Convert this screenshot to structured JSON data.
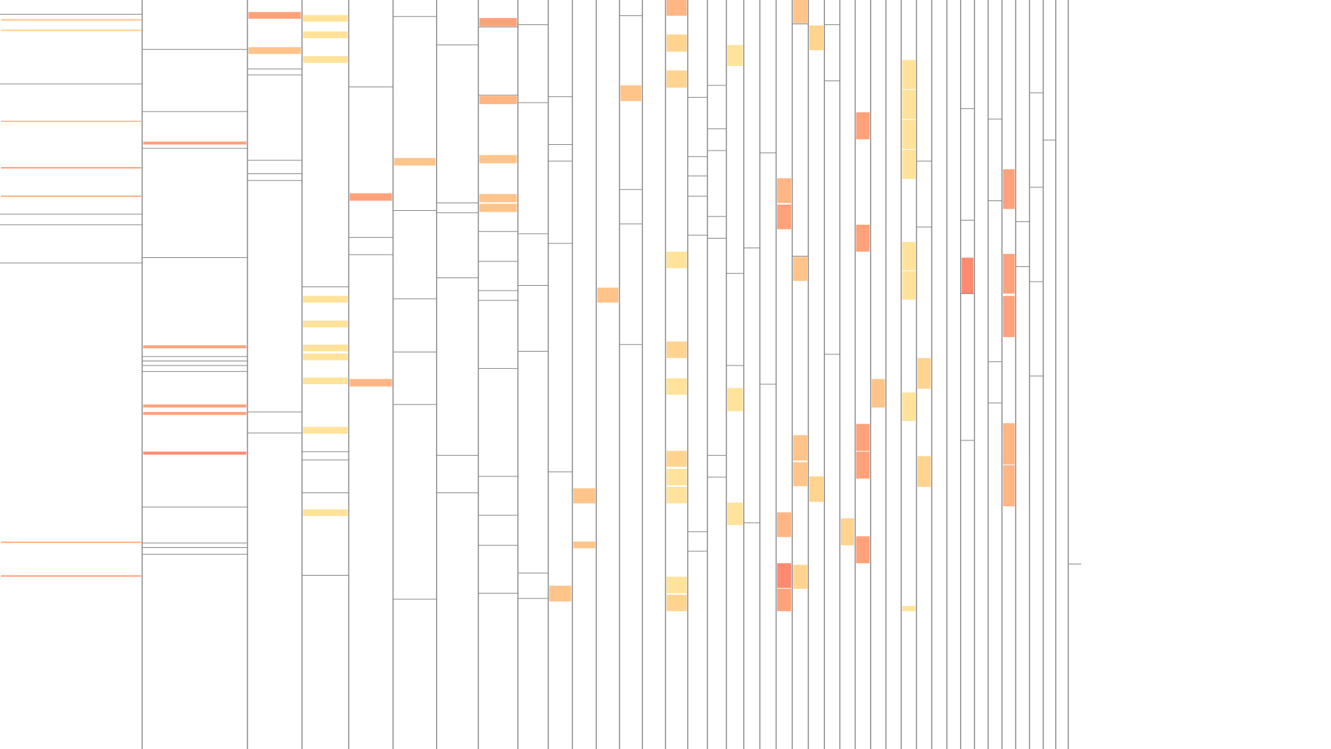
{
  "page": {
    "background": "#ffffff"
  },
  "chart_data": {
    "type": "heatmap",
    "description_axis": "",
    "x_range": [
      0,
      100
    ],
    "y_range": [
      0,
      100
    ],
    "visible_range": {
      "x": [
        0,
        81.25
      ],
      "y": [
        0,
        81.6
      ]
    },
    "palette": [
      "#FFE39A",
      "#FFD48F",
      "#FFC48A",
      "#FFB584",
      "#FFA27A",
      "#FF8A70"
    ],
    "divider_color": "#808080",
    "columns": [
      {
        "x0": 0.0,
        "x1": 10.68,
        "dividers": [
          1.9,
          11.2,
          28.6,
          30.0,
          35.1
        ],
        "cells": [
          [
            2.55,
            2.75,
            2
          ],
          [
            3.95,
            4.15,
            1
          ],
          [
            16.1,
            16.3,
            2
          ],
          [
            22.3,
            22.5,
            4
          ],
          [
            26.1,
            26.3,
            3
          ],
          [
            72.3,
            72.5,
            3
          ],
          [
            76.8,
            77.0,
            4
          ]
        ]
      },
      {
        "x0": 10.68,
        "x1": 18.59,
        "dividers": [
          6.6,
          14.9,
          19.8,
          34.4,
          47.6,
          48.2,
          48.8,
          49.6,
          67.7,
          72.5,
          73.1,
          74.0
        ],
        "cells": [
          [
            18.9,
            19.3,
            4
          ],
          [
            46.1,
            46.5,
            4
          ],
          [
            54.0,
            54.4,
            4
          ],
          [
            55.0,
            55.4,
            4
          ],
          [
            60.3,
            60.7,
            5
          ]
        ]
      },
      {
        "x0": 18.59,
        "x1": 22.69,
        "dividers": [
          9.2,
          10.0,
          21.4,
          23.2,
          24.1,
          55.0,
          57.8
        ],
        "cells": [
          [
            1.6,
            2.5,
            4
          ],
          [
            6.3,
            7.2,
            2
          ]
        ]
      },
      {
        "x0": 22.69,
        "x1": 26.2,
        "dividers": [
          38.3,
          60.3,
          61.4,
          65.8,
          76.8
        ],
        "cells": [
          [
            2.0,
            2.9,
            0
          ],
          [
            4.2,
            5.1,
            0
          ],
          [
            7.5,
            8.4,
            0
          ],
          [
            39.5,
            40.4,
            0
          ],
          [
            42.8,
            43.7,
            0
          ],
          [
            46.0,
            46.9,
            0
          ],
          [
            47.2,
            48.1,
            0
          ],
          [
            50.4,
            51.3,
            0
          ],
          [
            57.0,
            57.9,
            0
          ],
          [
            68.0,
            68.9,
            0
          ]
        ]
      },
      {
        "x0": 26.2,
        "x1": 29.53,
        "dividers": [
          11.6,
          31.7,
          34.0
        ],
        "cells": [
          [
            25.8,
            26.8,
            4
          ],
          [
            50.6,
            51.6,
            3
          ]
        ]
      },
      {
        "x0": 29.53,
        "x1": 32.8,
        "dividers": [
          2.2,
          28.1,
          39.9,
          47.0,
          54.0,
          80.0
        ],
        "cells": [
          [
            21.1,
            22.1,
            2
          ]
        ]
      },
      {
        "x0": 32.8,
        "x1": 35.94,
        "dividers": [
          6.0,
          27.1,
          28.4,
          37.1,
          60.8,
          65.8
        ],
        "cells": []
      },
      {
        "x0": 35.94,
        "x1": 38.91,
        "dividers": [
          3.6,
          12.7,
          30.9,
          34.9,
          38.8,
          40.1,
          49.2,
          63.6,
          68.8,
          72.8,
          79.2
        ],
        "cells": [
          [
            2.4,
            3.5,
            4
          ],
          [
            12.8,
            13.9,
            3
          ],
          [
            20.7,
            21.8,
            2
          ],
          [
            25.9,
            27.0,
            2
          ],
          [
            27.2,
            28.3,
            2
          ]
        ]
      },
      {
        "x0": 38.91,
        "x1": 41.19,
        "dividers": [
          3.3,
          13.7,
          31.2,
          38.1,
          46.9,
          76.5,
          79.9
        ],
        "cells": []
      },
      {
        "x0": 41.19,
        "x1": 43.0,
        "dividers": [
          12.9,
          19.3,
          21.5,
          32.5,
          63.0
        ],
        "cells": [
          [
            78.2,
            80.3,
            2
          ]
        ]
      },
      {
        "x0": 43.0,
        "x1": 44.8,
        "dividers": [],
        "cells": [
          [
            65.2,
            67.2,
            2
          ],
          [
            72.3,
            73.2,
            2
          ]
        ]
      },
      {
        "x0": 44.8,
        "x1": 46.54,
        "dividers": [],
        "cells": [
          [
            38.4,
            40.4,
            2
          ]
        ]
      },
      {
        "x0": 46.54,
        "x1": 48.26,
        "dividers": [
          2.1,
          25.3,
          29.9,
          46.0
        ],
        "cells": [
          [
            11.4,
            13.5,
            2
          ]
        ]
      },
      {
        "x0": 48.26,
        "x1": 50.0,
        "dividers": [],
        "cells": []
      },
      {
        "x0": 50.0,
        "x1": 51.67,
        "dividers": [],
        "cells": [
          [
            0.0,
            2.1,
            3
          ],
          [
            4.6,
            6.9,
            1
          ],
          [
            9.4,
            11.7,
            1
          ],
          [
            33.6,
            35.8,
            0
          ],
          [
            45.6,
            47.8,
            1
          ],
          [
            50.5,
            52.7,
            0
          ],
          [
            60.2,
            62.3,
            1
          ],
          [
            62.6,
            64.8,
            0
          ],
          [
            65.0,
            67.2,
            0
          ],
          [
            77.0,
            79.2,
            0
          ],
          [
            79.4,
            81.6,
            1
          ]
        ]
      },
      {
        "x0": 51.67,
        "x1": 53.15,
        "dividers": [
          13.0,
          20.9,
          23.5,
          26.2,
          31.4,
          71.0,
          73.6
        ],
        "cells": []
      },
      {
        "x0": 53.15,
        "x1": 54.57,
        "dividers": [
          11.4,
          17.2,
          20.1,
          28.9,
          31.8,
          60.8,
          63.7
        ],
        "cells": []
      },
      {
        "x0": 54.57,
        "x1": 55.88,
        "dividers": [
          36.5,
          48.8
        ],
        "cells": [
          [
            6.0,
            8.8,
            0
          ],
          [
            51.8,
            54.9,
            0
          ],
          [
            67.1,
            70.1,
            0
          ]
        ]
      },
      {
        "x0": 55.88,
        "x1": 57.09,
        "dividers": [
          33.1,
          69.8
        ],
        "cells": []
      },
      {
        "x0": 57.09,
        "x1": 58.31,
        "dividers": [
          20.4,
          51.3
        ],
        "cells": []
      },
      {
        "x0": 58.31,
        "x1": 59.52,
        "dividers": [],
        "cells": [
          [
            23.8,
            27.1,
            3
          ],
          [
            27.3,
            30.6,
            4
          ],
          [
            68.4,
            71.7,
            3
          ],
          [
            75.2,
            78.5,
            5
          ],
          [
            78.6,
            81.6,
            4
          ]
        ]
      },
      {
        "x0": 59.52,
        "x1": 60.73,
        "dividers": [
          3.2,
          34.2
        ],
        "cells": [
          [
            0.0,
            3.1,
            2
          ],
          [
            34.3,
            37.5,
            2
          ],
          [
            58.1,
            61.5,
            2
          ],
          [
            61.7,
            64.9,
            2
          ],
          [
            75.4,
            78.6,
            1
          ]
        ]
      },
      {
        "x0": 60.73,
        "x1": 61.94,
        "dividers": [],
        "cells": [
          [
            3.4,
            6.7,
            1
          ],
          [
            63.6,
            67.0,
            1
          ]
        ]
      },
      {
        "x0": 61.94,
        "x1": 63.1,
        "dividers": [
          3.3,
          10.8,
          47.3
        ],
        "cells": []
      },
      {
        "x0": 63.1,
        "x1": 64.25,
        "dividers": [],
        "cells": [
          [
            69.2,
            72.8,
            1
          ]
        ]
      },
      {
        "x0": 64.25,
        "x1": 65.41,
        "dividers": [],
        "cells": [
          [
            15.0,
            18.6,
            4
          ],
          [
            30.0,
            33.6,
            4
          ],
          [
            56.6,
            60.2,
            4
          ],
          [
            60.3,
            63.9,
            4
          ],
          [
            71.6,
            75.2,
            4
          ]
        ]
      },
      {
        "x0": 65.41,
        "x1": 66.56,
        "dividers": [],
        "cells": [
          [
            50.6,
            54.4,
            2
          ]
        ]
      },
      {
        "x0": 66.56,
        "x1": 67.71,
        "dividers": [],
        "cells": []
      },
      {
        "x0": 67.71,
        "x1": 68.86,
        "dividers": [],
        "cells": [
          [
            8.0,
            11.9,
            0
          ],
          [
            12.0,
            15.9,
            0
          ],
          [
            16.0,
            19.9,
            0
          ],
          [
            20.0,
            23.9,
            0
          ],
          [
            32.3,
            36.1,
            0
          ],
          [
            36.2,
            40.0,
            0
          ],
          [
            52.4,
            56.2,
            0
          ],
          [
            80.9,
            81.6,
            0
          ]
        ]
      },
      {
        "x0": 68.86,
        "x1": 70.0,
        "dividers": [
          21.5,
          30.3
        ],
        "cells": [
          [
            47.8,
            51.9,
            1
          ],
          [
            60.9,
            65.0,
            1
          ]
        ]
      },
      {
        "x0": 70.0,
        "x1": 71.14,
        "dividers": [],
        "cells": []
      },
      {
        "x0": 71.14,
        "x1": 72.17,
        "dividers": [],
        "cells": []
      },
      {
        "x0": 72.17,
        "x1": 73.21,
        "dividers": [
          14.5,
          29.4,
          39.2,
          58.8
        ],
        "cells": [
          [
            34.4,
            39.2,
            5
          ]
        ]
      },
      {
        "x0": 73.21,
        "x1": 74.24,
        "dividers": [],
        "cells": []
      },
      {
        "x0": 74.24,
        "x1": 75.28,
        "dividers": [
          15.9,
          26.8,
          48.3,
          53.8
        ],
        "cells": []
      },
      {
        "x0": 75.28,
        "x1": 76.31,
        "dividers": [],
        "cells": [
          [
            22.6,
            27.9,
            4
          ],
          [
            33.9,
            39.2,
            4
          ],
          [
            39.5,
            45.0,
            4
          ],
          [
            56.5,
            62.0,
            3
          ],
          [
            62.1,
            67.6,
            3
          ]
        ]
      },
      {
        "x0": 76.31,
        "x1": 77.35,
        "dividers": [
          29.6,
          35.6
        ],
        "cells": []
      },
      {
        "x0": 77.35,
        "x1": 78.38,
        "dividers": [
          12.4,
          25.0,
          37.6,
          50.2
        ],
        "cells": []
      },
      {
        "x0": 78.38,
        "x1": 79.32,
        "dividers": [
          18.7
        ],
        "cells": []
      },
      {
        "x0": 79.32,
        "x1": 80.26,
        "dividers": [],
        "cells": []
      },
      {
        "x0": 80.26,
        "x1": 81.25,
        "dividers": [
          75.3
        ],
        "cells": []
      }
    ]
  }
}
